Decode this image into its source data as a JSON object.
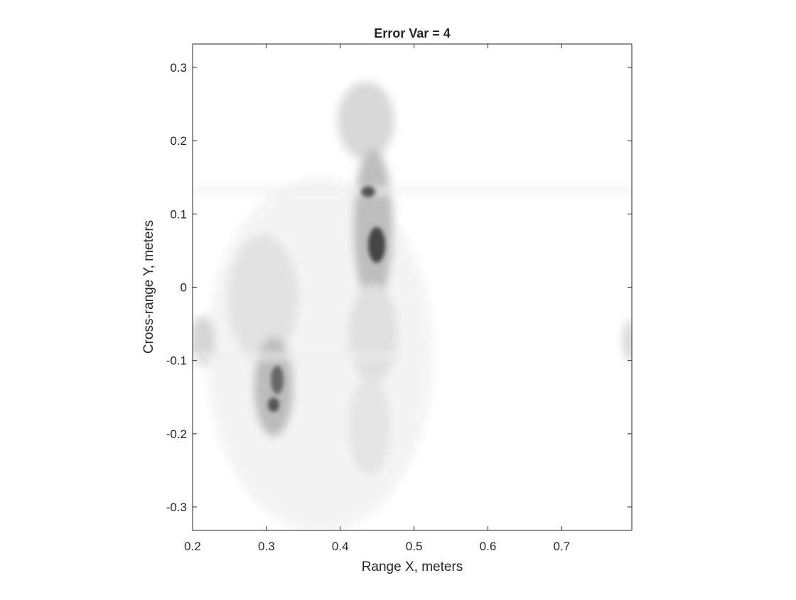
{
  "chart_data": {
    "type": "image",
    "title": "Error Var = 4",
    "x_label": "Range X, meters",
    "y_label": "Cross-range Y, meters",
    "xlim": [
      0.2,
      0.795
    ],
    "ylim": [
      -0.332,
      0.332
    ],
    "xticks": [
      0.2,
      0.3,
      0.4,
      0.5,
      0.6,
      0.7
    ],
    "yticks": [
      -0.3,
      -0.2,
      -0.1,
      0,
      0.1,
      0.2,
      0.3
    ],
    "colormap": "gray-reversed",
    "box": true
  }
}
